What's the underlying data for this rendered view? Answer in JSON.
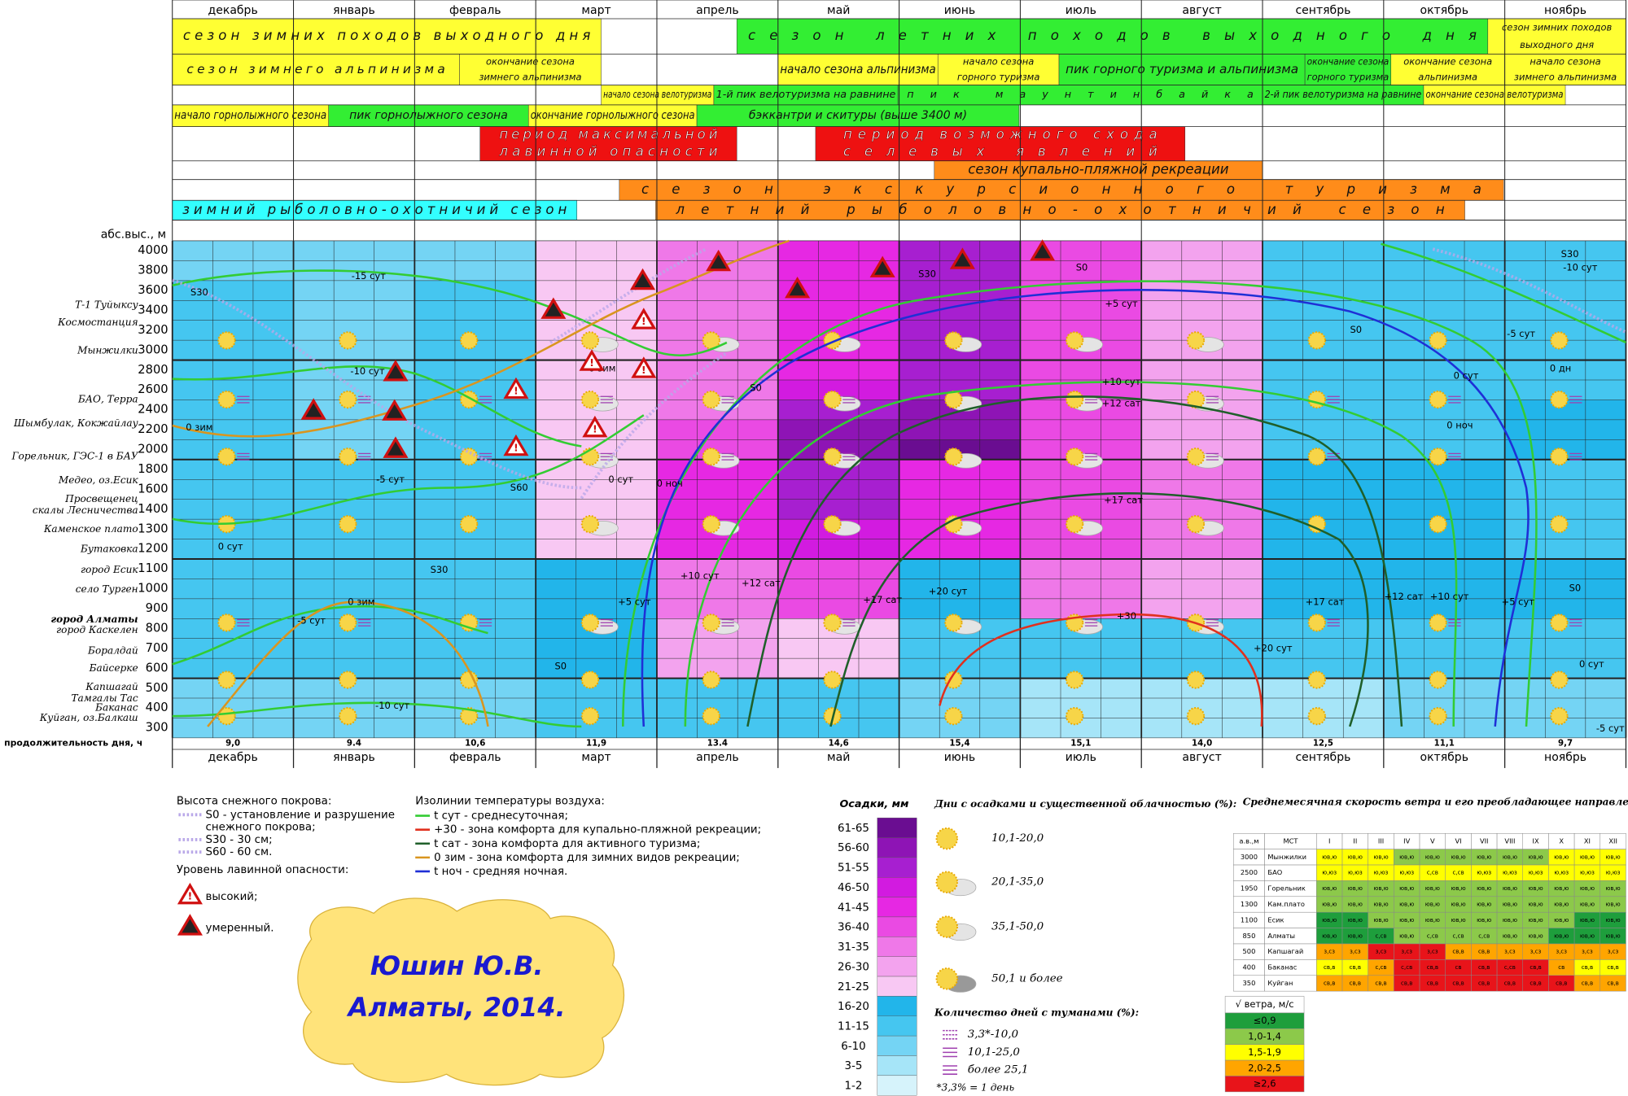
{
  "months": [
    "декабрь",
    "январь",
    "февраль",
    "март",
    "апрель",
    "май",
    "июнь",
    "июль",
    "август",
    "сентябрь",
    "октябрь",
    "ноябрь"
  ],
  "season_rows": [
    [
      {
        "lines": [
          "сезон зимних походов выходного дня"
        ],
        "color": "#ffff33"
      },
      {
        "lines": [
          "сезон летних походов выходного дня"
        ],
        "color": "#33ee33"
      },
      {
        "lines": [
          "сезон зимних походов",
          "выходного дня"
        ],
        "color": "#ffff33"
      }
    ],
    [
      {
        "lines": [
          "сезон зимнего альпинизма"
        ],
        "color": "#ffff33"
      },
      {
        "lines": [
          "окончание сезона",
          "зимнего альпинизма"
        ],
        "color": "#ffff33"
      },
      {
        "lines": [
          "начало сезона альпинизма"
        ],
        "color": "#ffff33"
      },
      {
        "lines": [
          "начало сезона",
          "горного туризма"
        ],
        "color": "#ffff33"
      },
      {
        "lines": [
          "пик горного туризма и альпинизма"
        ],
        "color": "#33ee33"
      },
      {
        "lines": [
          "окончание сезона",
          "горного туризма"
        ],
        "color": "#33ee33"
      },
      {
        "lines": [
          "окончание сезона",
          "альпинизма"
        ],
        "color": "#ffff33"
      },
      {
        "lines": [
          "начало сезона",
          "зимнего альпинизма"
        ],
        "color": "#ffff33"
      }
    ],
    [
      {
        "lines": [
          "начало сезона велотуризма"
        ],
        "color": "#ffff33"
      },
      {
        "lines": [
          "1-й пик велотуризма на равнине"
        ],
        "color": "#33ee33"
      },
      {
        "lines": [
          "пик маунтинбайка"
        ],
        "color": "#33ee33"
      },
      {
        "lines": [
          "2-й пик велотуризма на равнине"
        ],
        "color": "#33ee33"
      },
      {
        "lines": [
          "окончание сезона велотуризма"
        ],
        "color": "#ffff33"
      }
    ],
    [
      {
        "lines": [
          "начало горнолыжного сезона"
        ],
        "color": "#ffff33"
      },
      {
        "lines": [
          "пик горнолыжного сезона"
        ],
        "color": "#33ee33"
      },
      {
        "lines": [
          "окончание горнолыжного сезона"
        ],
        "color": "#ffff33"
      },
      {
        "lines": [
          "бэккантри и скитуры (выше 3400 м)"
        ],
        "color": "#33ee33"
      }
    ],
    [
      {
        "lines": [
          "период максимальной",
          "лавинной опасности"
        ],
        "color": "#ee1111"
      },
      {
        "lines": [
          "период возможного схода",
          "селевых явлений"
        ],
        "color": "#ee1111"
      }
    ],
    [
      {
        "lines": [
          "сезон купально-пляжной рекреации"
        ],
        "color": "#ff8c1a"
      }
    ],
    [
      {
        "lines": [
          "сезон экскурсионного туризма"
        ],
        "color": "#ff8c1a"
      }
    ],
    [
      {
        "lines": [
          "зимний рыболовно-охотничий сезон"
        ],
        "color": "#33ffff"
      },
      {
        "lines": [
          "летний рыболовно-охотничий сезон"
        ],
        "color": "#ff8c1a"
      }
    ]
  ],
  "altitude_label": "абс.выс., м",
  "altitudes": [
    4000,
    3800,
    3600,
    3400,
    3200,
    3000,
    2800,
    2600,
    2400,
    2200,
    2000,
    1800,
    1600,
    1400,
    1300,
    1200,
    1100,
    1000,
    900,
    800,
    700,
    600,
    500,
    400,
    300
  ],
  "places": [
    "Т-1 Туйыксу",
    "Космостанция",
    "Мынжилки",
    "БАО, Терра",
    "Шымбулак, Кокжайлау",
    "Горельник, ГЭС-1 в БАУ",
    "Медео, оз.Есик",
    "Просвещенец",
    "скалы Лесничества",
    "Каменское плато",
    "Бутаковка",
    "город Есик",
    "село Турген",
    "город Алматы",
    "город Каскелен",
    "Боралдай",
    "Байсерке",
    "Капшагай",
    "Тамгалы Тас",
    "Баканас",
    "Куйган, оз.Балкаш"
  ],
  "precipitation": {
    "title": "Осадки, мм",
    "classes": [
      {
        "label": "61-65",
        "color": "#6a0d91"
      },
      {
        "label": "56-60",
        "color": "#8e14b5"
      },
      {
        "label": "51-55",
        "color": "#a71fd0"
      },
      {
        "label": "46-50",
        "color": "#d21be0"
      },
      {
        "label": "41-45",
        "color": "#e628e3"
      },
      {
        "label": "36-40",
        "color": "#ea4ae3"
      },
      {
        "label": "31-35",
        "color": "#ef78e8"
      },
      {
        "label": "26-30",
        "color": "#f3a3ee"
      },
      {
        "label": "21-25",
        "color": "#f8c8f3"
      },
      {
        "label": "16-20",
        "color": "#22b5ea"
      },
      {
        "label": "11-15",
        "color": "#45c6f0"
      },
      {
        "label": "6-10",
        "color": "#74d4f4"
      },
      {
        "label": "3-5",
        "color": "#a6e5f8"
      },
      {
        "label": "1-2",
        "color": "#d6f3fb"
      }
    ],
    "grid": [
      [
        11,
        11,
        11,
        8,
        6,
        4,
        2,
        5,
        7,
        10,
        10,
        10
      ],
      [
        11,
        11,
        11,
        8,
        6,
        4,
        2,
        5,
        7,
        10,
        10,
        10
      ],
      [
        10,
        11,
        10,
        8,
        6,
        4,
        2,
        5,
        7,
        10,
        10,
        10
      ],
      [
        10,
        11,
        10,
        8,
        6,
        4,
        2,
        5,
        7,
        10,
        10,
        10
      ],
      [
        10,
        11,
        10,
        8,
        6,
        4,
        2,
        5,
        7,
        10,
        10,
        10
      ],
      [
        10,
        11,
        10,
        8,
        6,
        4,
        2,
        5,
        7,
        10,
        10,
        10
      ],
      [
        10,
        11,
        10,
        8,
        6,
        4,
        2,
        5,
        7,
        10,
        10,
        10
      ],
      [
        10,
        11,
        10,
        8,
        6,
        3,
        2,
        5,
        7,
        10,
        10,
        10
      ],
      [
        10,
        11,
        10,
        8,
        6,
        2,
        1,
        5,
        7,
        10,
        10,
        9
      ],
      [
        10,
        11,
        10,
        8,
        5,
        1,
        1,
        5,
        7,
        10,
        10,
        9
      ],
      [
        10,
        11,
        10,
        8,
        5,
        1,
        0,
        5,
        7,
        10,
        10,
        9
      ],
      [
        10,
        10,
        10,
        8,
        4,
        2,
        4,
        5,
        6,
        9,
        9,
        10
      ],
      [
        10,
        10,
        10,
        8,
        4,
        2,
        4,
        5,
        6,
        9,
        9,
        10
      ],
      [
        10,
        10,
        10,
        8,
        4,
        2,
        4,
        5,
        6,
        9,
        9,
        10
      ],
      [
        10,
        10,
        10,
        8,
        4,
        3,
        4,
        5,
        6,
        9,
        9,
        10
      ],
      [
        10,
        10,
        10,
        8,
        4,
        3,
        4,
        5,
        6,
        9,
        9,
        10
      ],
      [
        10,
        10,
        10,
        9,
        6,
        5,
        9,
        6,
        7,
        9,
        9,
        9
      ],
      [
        10,
        10,
        10,
        9,
        6,
        5,
        9,
        6,
        7,
        9,
        9,
        9
      ],
      [
        10,
        10,
        10,
        9,
        6,
        5,
        9,
        6,
        7,
        9,
        9,
        9
      ],
      [
        10,
        10,
        10,
        9,
        7,
        8,
        10,
        10,
        10,
        10,
        10,
        10
      ],
      [
        10,
        10,
        10,
        9,
        7,
        8,
        10,
        10,
        10,
        10,
        10,
        10
      ],
      [
        10,
        10,
        10,
        9,
        7,
        8,
        10,
        10,
        10,
        10,
        10,
        10
      ],
      [
        11,
        11,
        11,
        10,
        10,
        10,
        11,
        12,
        12,
        12,
        11,
        11
      ],
      [
        11,
        11,
        11,
        10,
        10,
        10,
        11,
        12,
        12,
        12,
        11,
        11
      ],
      [
        11,
        11,
        11,
        10,
        10,
        10,
        11,
        12,
        12,
        12,
        11,
        11
      ]
    ]
  },
  "day_length": {
    "label": "продолжительность дня, ч",
    "values": [
      "9,0",
      "9.4",
      "10,6",
      "11,9",
      "13.4",
      "14,6",
      "15,4",
      "15,1",
      "14,0",
      "12,5",
      "11,1",
      "9,7"
    ]
  },
  "isoline_labels": [
    "-15 сут",
    "S30",
    "S30",
    "S0",
    "S30",
    "-10 сут",
    "-5 сут",
    "S0",
    "+5 сут",
    "+10 сут",
    "+12 сат",
    "0 дн",
    "0 сут",
    "0 ноч",
    "-10 сут",
    "0 зим",
    "S0",
    "0 зим",
    "-5 сут",
    "S60",
    "0 сут",
    "0 ноч",
    "+17 сат",
    "0 сут",
    "S30",
    "+5 сут",
    "+10 сут",
    "+12 сат",
    "+17 сат",
    "+20 сут",
    "+30",
    "+20 сут",
    "+17 сат",
    "+12 сат",
    "+10 сут",
    "+5 сут",
    "S0",
    "0 сут",
    "0 зим",
    "-5 сут",
    "S0",
    "-10 сут",
    "-5 сут"
  ],
  "snow_legend": {
    "title": "Высота снежного покрова:",
    "items": [
      "S0 - установление и разрушение",
      "снежного покрова;",
      "S30 - 30 см;",
      "S60 - 60 см."
    ],
    "avalanche_title": "Уровень лавинной опасности:",
    "avalanche_items": [
      "высокий;",
      "умеренный."
    ]
  },
  "isotherm_legend": {
    "title": "Изолинии температуры воздуха:",
    "items": [
      {
        "text": "t сут - среднесуточная;",
        "color": "#33cc33"
      },
      {
        "text": "+30 - зона комфорта для купально-пляжной рекреации;",
        "color": "#e0301e"
      },
      {
        "text": "t сат - зона комфорта для активного туризма;",
        "color": "#1f5f2a"
      },
      {
        "text": "0 зим - зона комфорта для зимних видов рекреации;",
        "color": "#d9951f"
      },
      {
        "text": "t ноч - средняя ночная.",
        "color": "#1f2fd6"
      }
    ]
  },
  "author": [
    "Юшин Ю.В.",
    "Алматы, 2014."
  ],
  "clouds_legend": {
    "title": "Дни с осадками и существенной облачностью (%):",
    "items": [
      "10,1-20,0",
      "20,1-35,0",
      "35,1-50,0",
      "50,1 и более"
    ],
    "fog_title": "Количество дней с туманами (%):",
    "fog_items": [
      "3,3*-10,0",
      "10,1-25,0",
      "более 25,1"
    ],
    "note": "*3,3% = 1 день"
  },
  "wind": {
    "title": "Среднемесячная скорость ветра и его преобладающее направление",
    "header": [
      "а.в.,м",
      "МСТ",
      "I",
      "II",
      "III",
      "IV",
      "V",
      "VI",
      "VII",
      "VIII",
      "IX",
      "X",
      "XI",
      "XII"
    ],
    "rows": [
      {
        "altitude": 3000,
        "station": "Мынжилки",
        "directions": [
          "юв,ю",
          "юв,ю",
          "юв,ю",
          "юв,ю",
          "юв,ю",
          "юв,ю",
          "юв,ю",
          "юв,ю",
          "юв,ю",
          "юв,ю",
          "юв,ю",
          "юв,ю"
        ],
        "speed": [
          2,
          2,
          2,
          1,
          1,
          1,
          1,
          1,
          1,
          2,
          2,
          2
        ]
      },
      {
        "altitude": 2500,
        "station": "БАО",
        "directions": [
          "ю,юз",
          "ю,юз",
          "ю,юз",
          "ю,юз",
          "с,св",
          "с,св",
          "ю,юз",
          "ю,юз",
          "ю,юз",
          "ю,юз",
          "ю,юз",
          "ю,юз"
        ],
        "speed": [
          2,
          2,
          2,
          2,
          2,
          2,
          2,
          2,
          2,
          2,
          2,
          2
        ]
      },
      {
        "altitude": 1950,
        "station": "Горельник",
        "directions": [
          "юв,ю",
          "юв,ю",
          "юв,ю",
          "юв,ю",
          "юв,ю",
          "юв,ю",
          "юв,ю",
          "юв,ю",
          "юв,ю",
          "юв,ю",
          "юв,ю",
          "юв,ю"
        ],
        "speed": [
          1,
          1,
          1,
          1,
          1,
          1,
          1,
          1,
          1,
          1,
          1,
          1
        ]
      },
      {
        "altitude": 1300,
        "station": "Кам.плато",
        "directions": [
          "юв,ю",
          "юв,ю",
          "юв,ю",
          "юв,ю",
          "юв,ю",
          "юв,ю",
          "юв,ю",
          "юв,ю",
          "юв,ю",
          "юв,ю",
          "юв,ю",
          "юв,ю"
        ],
        "speed": [
          1,
          1,
          1,
          1,
          1,
          1,
          1,
          1,
          1,
          1,
          1,
          1
        ]
      },
      {
        "altitude": 1100,
        "station": "Есик",
        "directions": [
          "юв,ю",
          "юв,ю",
          "юв,ю",
          "юв,ю",
          "юв,ю",
          "юв,ю",
          "юв,ю",
          "юв,ю",
          "юв,ю",
          "юв,ю",
          "юв,ю",
          "юв,ю"
        ],
        "speed": [
          0,
          0,
          1,
          1,
          1,
          1,
          1,
          1,
          1,
          1,
          0,
          0
        ]
      },
      {
        "altitude": 850,
        "station": "Алматы",
        "directions": [
          "юв,ю",
          "юв,ю",
          "с,св",
          "юв,ю",
          "с,св",
          "с,св",
          "с,св",
          "юв,ю",
          "юв,ю",
          "юв,ю",
          "юв,ю",
          "юв,ю"
        ],
        "speed": [
          0,
          0,
          0,
          1,
          1,
          1,
          1,
          1,
          1,
          0,
          0,
          0
        ]
      },
      {
        "altitude": 500,
        "station": "Капшагай",
        "directions": [
          "з,сз",
          "з,сз",
          "з,сз",
          "з,сз",
          "з,сз",
          "св,в",
          "св,в",
          "з,сз",
          "з,сз",
          "з,сз",
          "з,сз",
          "з,сз"
        ],
        "speed": [
          3,
          3,
          4,
          4,
          4,
          3,
          3,
          3,
          3,
          3,
          3,
          3
        ]
      },
      {
        "altitude": 400,
        "station": "Баканас",
        "directions": [
          "св,в",
          "св,в",
          "с,св",
          "с,св",
          "св,в",
          "св",
          "св,в",
          "с,св",
          "св,в",
          "св",
          "св,в",
          "св,в"
        ],
        "speed": [
          2,
          2,
          3,
          4,
          4,
          4,
          4,
          4,
          4,
          3,
          2,
          2
        ]
      },
      {
        "altitude": 350,
        "station": "Куйган",
        "directions": [
          "св,в",
          "св,в",
          "св,в",
          "св,в",
          "св,в",
          "св,в",
          "св,в",
          "св,в",
          "св,в",
          "св,в",
          "св,в",
          "св,в"
        ],
        "speed": [
          3,
          3,
          3,
          4,
          4,
          4,
          4,
          4,
          4,
          4,
          3,
          3
        ]
      }
    ],
    "speed_legend": {
      "title": "√ ветра, м/с",
      "classes": [
        {
          "label": "≤0,9",
          "color": "#1e9e3c"
        },
        {
          "label": "1,0-1,4",
          "color": "#8cc94a"
        },
        {
          "label": "1,5-1,9",
          "color": "#ffff00"
        },
        {
          "label": "2,0-2,5",
          "color": "#ffa500"
        },
        {
          "label": "≥2,6",
          "color": "#e8141a"
        }
      ]
    }
  }
}
